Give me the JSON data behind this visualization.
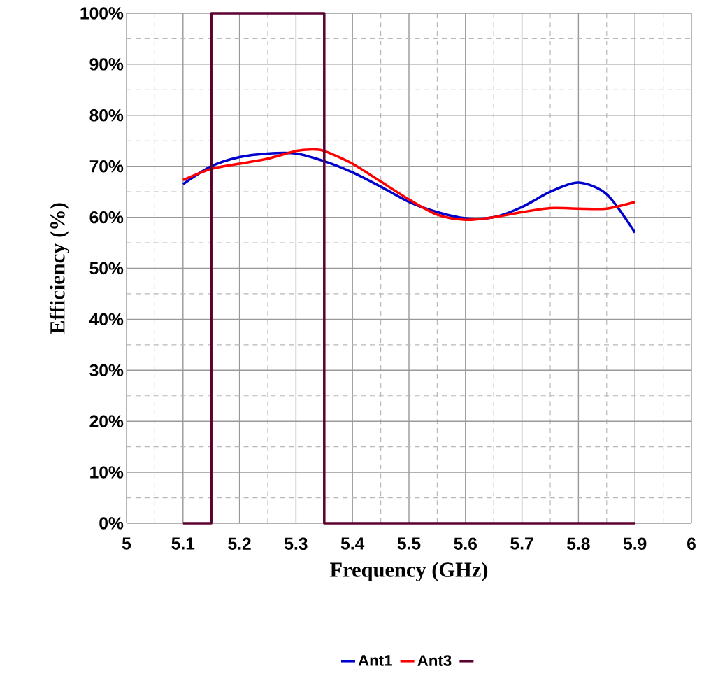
{
  "chart_data": {
    "type": "line",
    "xlabel": "Frequency (GHz)",
    "ylabel": "Efficiency (%)",
    "x": [
      5.1,
      5.15,
      5.2,
      5.25,
      5.3,
      5.35,
      5.4,
      5.45,
      5.5,
      5.55,
      5.6,
      5.65,
      5.7,
      5.75,
      5.8,
      5.85,
      5.9
    ],
    "series": [
      {
        "name": "Ant1",
        "color": "#0000cc",
        "values": [
          66.5,
          70,
          71.8,
          72.5,
          72.5,
          71,
          68.8,
          66,
          63,
          61,
          59.8,
          60,
          62,
          65,
          66.8,
          64.5,
          57
        ]
      },
      {
        "name": "Ant3",
        "color": "#ff0000",
        "x": [
          5.1,
          5.15,
          5.2,
          5.25,
          5.3,
          5.325,
          5.35,
          5.4,
          5.45,
          5.5,
          5.55,
          5.6,
          5.65,
          5.7,
          5.75,
          5.8,
          5.85,
          5.9
        ],
        "values": [
          67.3,
          69.5,
          70.5,
          71.5,
          73,
          73.3,
          73,
          70.5,
          67,
          63.5,
          60.5,
          59.5,
          60,
          61,
          61.8,
          61.7,
          61.7,
          63
        ]
      },
      {
        "color": "#5c0030",
        "x": [
          5.1,
          5.15,
          5.15,
          5.35,
          5.35,
          5.9
        ],
        "values": [
          0,
          0,
          100,
          100,
          0,
          0
        ]
      }
    ],
    "xlim": [
      5,
      6
    ],
    "xticks": [
      5,
      5.1,
      5.2,
      5.3,
      5.4,
      5.5,
      5.6,
      5.7,
      5.8,
      5.9,
      6
    ],
    "ylim": [
      0,
      100
    ],
    "yticks": [
      {
        "value": 0,
        "label": "0%"
      },
      {
        "value": 10,
        "label": "10%"
      },
      {
        "value": 20,
        "label": "20%"
      },
      {
        "value": 30,
        "label": "30%"
      },
      {
        "value": 40,
        "label": "40%"
      },
      {
        "value": 50,
        "label": "50%"
      },
      {
        "value": 60,
        "label": "60%"
      },
      {
        "value": 70,
        "label": "70%"
      },
      {
        "value": 80,
        "label": "80%"
      },
      {
        "value": 90,
        "label": "90%"
      },
      {
        "value": 100,
        "label": "100%"
      }
    ],
    "grid": true,
    "legend": "bottom",
    "marker": "none",
    "line_style": "solid"
  }
}
